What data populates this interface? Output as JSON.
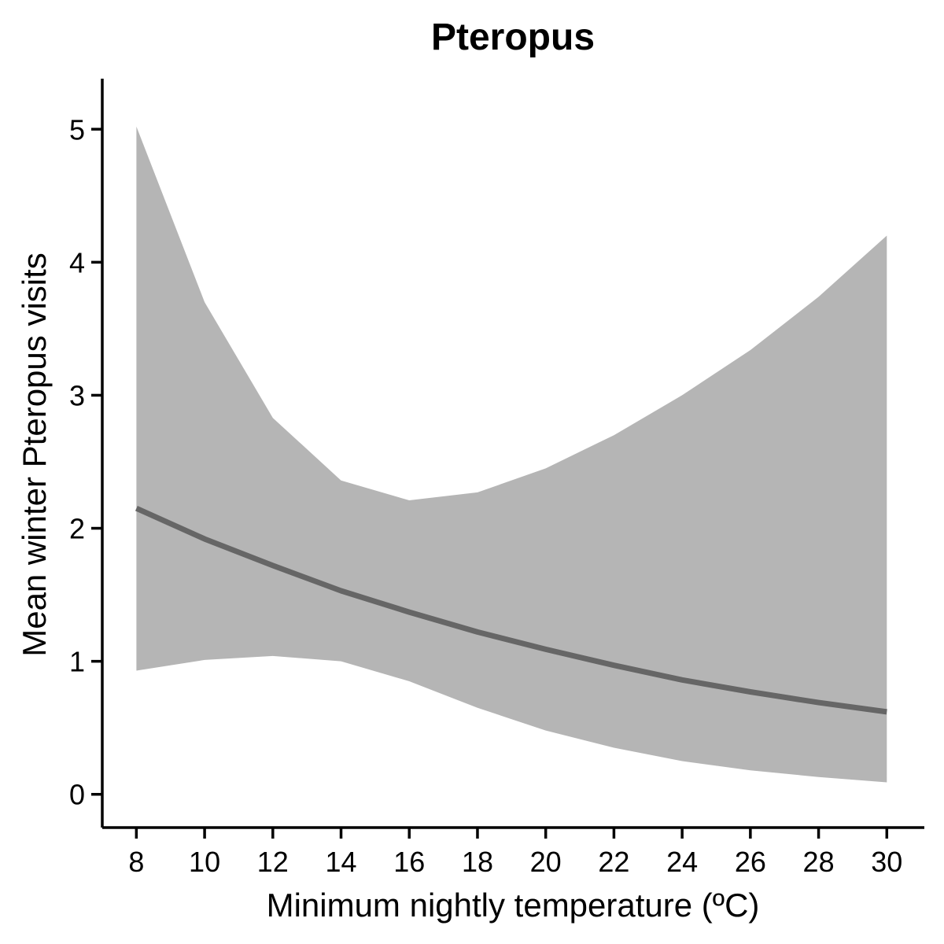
{
  "chart_data": {
    "type": "line",
    "title": "Pteropus",
    "xlabel": "Minimum nightly temperature (ºC)",
    "ylabel": "Mean winter Pteropus visits",
    "xlim": [
      7,
      31.1
    ],
    "ylim": [
      -0.25,
      5.38
    ],
    "x_ticks": [
      8,
      10,
      12,
      14,
      16,
      18,
      20,
      22,
      24,
      26,
      28,
      30
    ],
    "y_ticks": [
      0,
      1,
      2,
      3,
      4,
      5
    ],
    "grid": false,
    "legend": "none",
    "series": [
      {
        "x": [
          8,
          10,
          12,
          14,
          16,
          18,
          20,
          22,
          24,
          26,
          28,
          30
        ],
        "values": [
          2.15,
          1.92,
          1.72,
          1.53,
          1.37,
          1.22,
          1.09,
          0.97,
          0.86,
          0.77,
          0.69,
          0.62
        ],
        "lower": [
          0.93,
          1.01,
          1.04,
          1.0,
          0.85,
          0.65,
          0.48,
          0.35,
          0.25,
          0.18,
          0.13,
          0.09
        ],
        "upper": [
          5.02,
          3.7,
          2.83,
          2.36,
          2.21,
          2.27,
          2.45,
          2.7,
          3.0,
          3.34,
          3.74,
          4.2
        ]
      }
    ],
    "colors": {
      "ribbon": "#b5b5b5",
      "line": "#666666"
    }
  }
}
